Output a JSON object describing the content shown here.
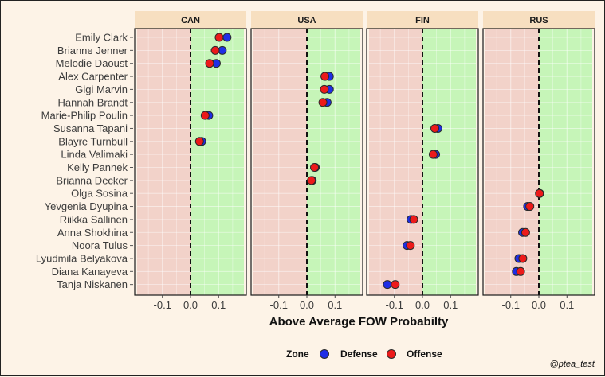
{
  "chart_data": {
    "type": "scatter",
    "xlabel": "Above Average FOW Probabilty",
    "xlim": [
      -0.19,
      0.19
    ],
    "x_ticks": [
      "-0.1",
      "0.0",
      "0.1"
    ],
    "reference_line": 0,
    "players": [
      "Emily Clark",
      "Brianne Jenner",
      "Melodie Daoust",
      "Alex Carpenter",
      "Gigi Marvin",
      "Hannah Brandt",
      "Marie-Philip Poulin",
      "Susanna Tapani",
      "Blayre Turnbull",
      "Linda Valimaki",
      "Kelly Pannek",
      "Brianna Decker",
      "Olga Sosina",
      "Yevgenia Dyupina",
      "Riikka Sallinen",
      "Anna Shokhina",
      "Noora Tulus",
      "Lyudmila Belyakova",
      "Diana Kanayeva",
      "Tanja Niskanen"
    ],
    "panels": [
      {
        "label": "CAN",
        "points": [
          {
            "player": "Emily Clark",
            "defense": 0.13,
            "offense": 0.102
          },
          {
            "player": "Brianne Jenner",
            "defense": 0.113,
            "offense": 0.088
          },
          {
            "player": "Melodie Daoust",
            "defense": 0.092,
            "offense": 0.068
          },
          {
            "player": "Marie-Philip Poulin",
            "defense": 0.065,
            "offense": 0.052
          },
          {
            "player": "Blayre Turnbull",
            "defense": 0.04,
            "offense": 0.032
          }
        ]
      },
      {
        "label": "USA",
        "points": [
          {
            "player": "Alex Carpenter",
            "defense": 0.08,
            "offense": 0.064
          },
          {
            "player": "Gigi Marvin",
            "defense": 0.08,
            "offense": 0.062
          },
          {
            "player": "Hannah Brandt",
            "defense": 0.072,
            "offense": 0.057
          },
          {
            "player": "Kelly Pannek",
            "defense": 0.03,
            "offense": 0.027
          },
          {
            "player": "Brianna Decker",
            "defense": 0.019,
            "offense": 0.016
          }
        ]
      },
      {
        "label": "FIN",
        "points": [
          {
            "player": "Susanna Tapani",
            "defense": 0.055,
            "offense": 0.044
          },
          {
            "player": "Linda Valimaki",
            "defense": 0.047,
            "offense": 0.038
          },
          {
            "player": "Riikka Sallinen",
            "defense": -0.041,
            "offense": -0.031
          },
          {
            "player": "Noora Tulus",
            "defense": -0.055,
            "offense": -0.043
          },
          {
            "player": "Tanja Niskanen",
            "defense": -0.125,
            "offense": -0.097
          }
        ]
      },
      {
        "label": "RUS",
        "points": [
          {
            "player": "Olga Sosina",
            "defense": 0.003,
            "offense": 0.002
          },
          {
            "player": "Yevgenia Dyupina",
            "defense": -0.04,
            "offense": -0.032
          },
          {
            "player": "Anna Shokhina",
            "defense": -0.058,
            "offense": -0.047
          },
          {
            "player": "Lyudmila Belyakova",
            "defense": -0.071,
            "offense": -0.057
          },
          {
            "player": "Diana Kanayeva",
            "defense": -0.08,
            "offense": -0.065
          }
        ]
      }
    ],
    "legend": {
      "title": "Zone",
      "position": "bottom",
      "items": [
        {
          "label": "Defense",
          "color": "#1f2ee6"
        },
        {
          "label": "Offense",
          "color": "#ec1a1a"
        }
      ]
    },
    "colors": {
      "background": "#fdf3e7",
      "strip": "#f7dfc0",
      "negative_region": "#f2d2c9",
      "positive_region": "#c6f5b8",
      "grid": "#f0f0f0",
      "dot_outline": "#2b2b2b"
    },
    "grid": true
  },
  "caption": "@ptea_test"
}
